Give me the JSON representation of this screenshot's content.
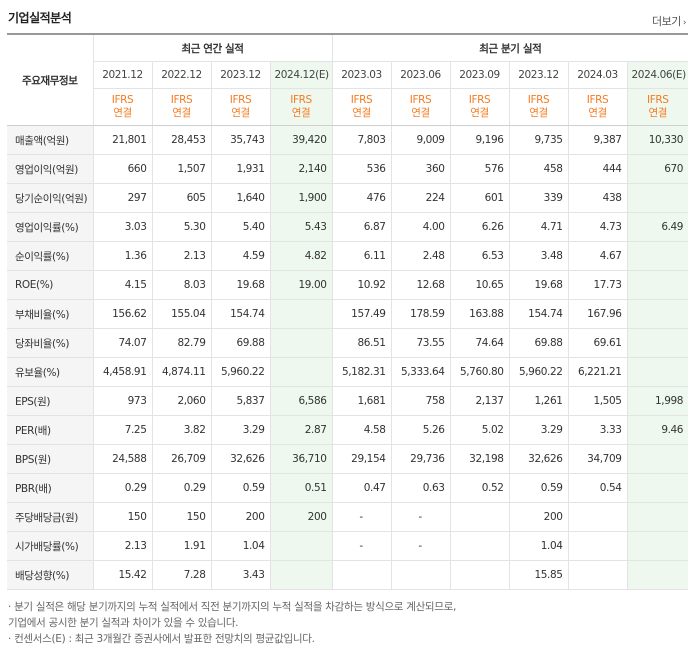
{
  "header": {
    "title": "기업실적분석",
    "more": "더보기",
    "more_arrow": "›"
  },
  "table": {
    "corner": "주요재무정보",
    "groups": [
      "최근 연간 실적",
      "최근 분기 실적"
    ],
    "periods": [
      "2021.12",
      "2022.12",
      "2023.12",
      "2024.12(E)",
      "2023.03",
      "2023.06",
      "2023.09",
      "2023.12",
      "2024.03",
      "2024.06(E)"
    ],
    "acc_top": "IFRS",
    "acc_bottom": "연결",
    "rows": [
      {
        "label": "매출액(억원)",
        "values": [
          "21,801",
          "28,453",
          "35,743",
          "39,420",
          "7,803",
          "9,009",
          "9,196",
          "9,735",
          "9,387",
          "10,330"
        ]
      },
      {
        "label": "영업이익(억원)",
        "values": [
          "660",
          "1,507",
          "1,931",
          "2,140",
          "536",
          "360",
          "576",
          "458",
          "444",
          "670"
        ]
      },
      {
        "label": "당기순이익(억원)",
        "values": [
          "297",
          "605",
          "1,640",
          "1,900",
          "476",
          "224",
          "601",
          "339",
          "438",
          ""
        ]
      },
      {
        "label": "영업이익률(%)",
        "values": [
          "3.03",
          "5.30",
          "5.40",
          "5.43",
          "6.87",
          "4.00",
          "6.26",
          "4.71",
          "4.73",
          "6.49"
        ]
      },
      {
        "label": "순이익률(%)",
        "values": [
          "1.36",
          "2.13",
          "4.59",
          "4.82",
          "6.11",
          "2.48",
          "6.53",
          "3.48",
          "4.67",
          ""
        ]
      },
      {
        "label": "ROE(%)",
        "values": [
          "4.15",
          "8.03",
          "19.68",
          "19.00",
          "10.92",
          "12.68",
          "10.65",
          "19.68",
          "17.73",
          ""
        ]
      },
      {
        "label": "부채비율(%)",
        "values": [
          "156.62",
          "155.04",
          "154.74",
          "",
          "157.49",
          "178.59",
          "163.88",
          "154.74",
          "167.96",
          ""
        ]
      },
      {
        "label": "당좌비율(%)",
        "values": [
          "74.07",
          "82.79",
          "69.88",
          "",
          "86.51",
          "73.55",
          "74.64",
          "69.88",
          "69.61",
          ""
        ]
      },
      {
        "label": "유보율(%)",
        "values": [
          "4,458.91",
          "4,874.11",
          "5,960.22",
          "",
          "5,182.31",
          "5,333.64",
          "5,760.80",
          "5,960.22",
          "6,221.21",
          ""
        ]
      },
      {
        "label": "EPS(원)",
        "values": [
          "973",
          "2,060",
          "5,837",
          "6,586",
          "1,681",
          "758",
          "2,137",
          "1,261",
          "1,505",
          "1,998"
        ]
      },
      {
        "label": "PER(배)",
        "values": [
          "7.25",
          "3.82",
          "3.29",
          "2.87",
          "4.58",
          "5.26",
          "5.02",
          "3.29",
          "3.33",
          "9.46"
        ]
      },
      {
        "label": "BPS(원)",
        "values": [
          "24,588",
          "26,709",
          "32,626",
          "36,710",
          "29,154",
          "29,736",
          "32,198",
          "32,626",
          "34,709",
          ""
        ]
      },
      {
        "label": "PBR(배)",
        "values": [
          "0.29",
          "0.29",
          "0.59",
          "0.51",
          "0.47",
          "0.63",
          "0.52",
          "0.59",
          "0.54",
          ""
        ]
      },
      {
        "label": "주당배당금(원)",
        "values": [
          "150",
          "150",
          "200",
          "200",
          "-",
          "-",
          "",
          "200",
          "",
          ""
        ]
      },
      {
        "label": "시가배당률(%)",
        "values": [
          "2.13",
          "1.91",
          "1.04",
          "",
          "-",
          "-",
          "",
          "1.04",
          "",
          ""
        ]
      },
      {
        "label": "배당성향(%)",
        "values": [
          "15.42",
          "7.28",
          "3.43",
          "",
          "",
          "",
          "",
          "15.85",
          "",
          ""
        ]
      }
    ]
  },
  "notes": [
    "· 분기 실적은 해당 분기까지의 누적 실적에서 직전 분기까지의 누적 실적을 차감하는 방식으로 계산되므로,",
    "   기업에서 공시한 분기 실적과 차이가 있을 수 있습니다.",
    "· 컨센서스(E) : 최근 3개월간 증권사에서 발표한 전망치의 평균값입니다."
  ]
}
